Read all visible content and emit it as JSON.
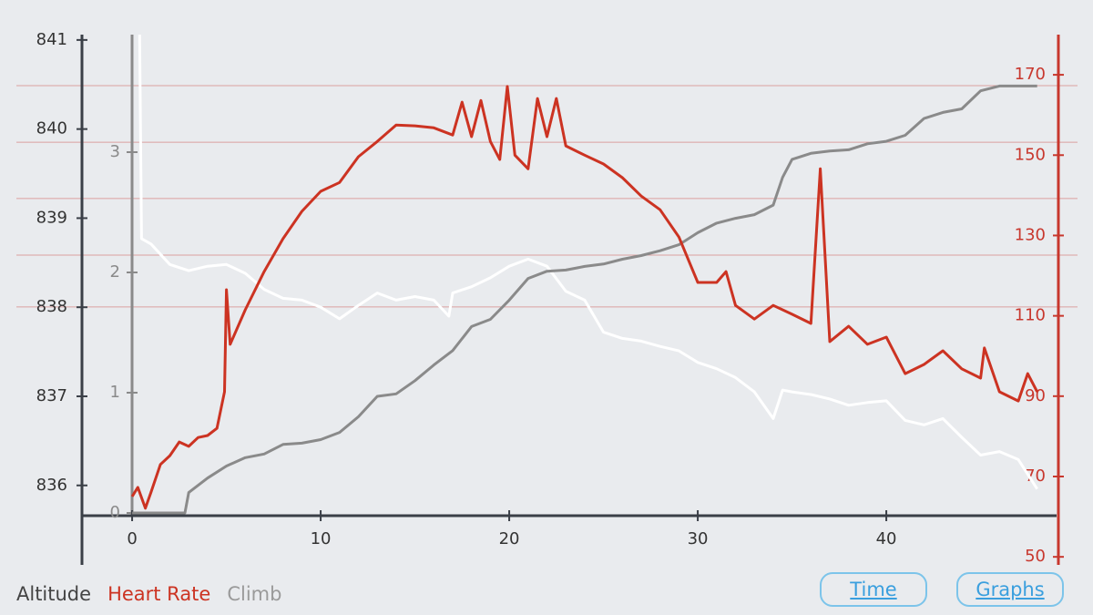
{
  "chart_data": {
    "type": "line",
    "xlim": [
      -2.66,
      49.03
    ],
    "xticks": [
      0,
      10,
      20,
      30,
      40
    ],
    "ylim": [
      835.66,
      841.06
    ],
    "yticks": [
      836,
      837,
      838,
      839,
      840,
      841
    ],
    "y2lim": [
      48,
      180
    ],
    "y2ticks": [
      50,
      70,
      90,
      110,
      130,
      150,
      170
    ],
    "y3lim": [
      0,
      4
    ],
    "y3ticks": [
      0,
      1,
      2,
      3
    ],
    "y2grid": [
      167.3,
      153.2,
      139.2,
      125.1,
      112.2
    ],
    "series": [
      {
        "name": "Altitude",
        "color": "#ffffff",
        "axis": "y",
        "x": [
          0.4,
          0.5,
          1,
          2,
          3,
          4,
          5,
          6,
          7,
          8,
          9,
          10,
          11,
          12,
          13,
          14,
          15,
          16,
          16.8,
          17,
          18,
          19,
          20,
          21,
          22,
          23,
          24,
          25,
          26,
          27,
          28,
          29,
          30,
          31,
          32,
          33,
          34,
          34.5,
          35,
          36,
          37,
          38,
          39,
          40,
          41,
          42,
          43,
          44,
          45,
          46,
          47,
          48
        ],
        "values": [
          841.06,
          838.77,
          838.71,
          838.48,
          838.41,
          838.46,
          838.48,
          838.38,
          838.2,
          838.1,
          838.08,
          838.0,
          837.87,
          838.02,
          838.16,
          838.08,
          838.12,
          838.08,
          837.9,
          838.16,
          838.23,
          838.33,
          838.46,
          838.54,
          838.46,
          838.18,
          838.08,
          837.72,
          837.65,
          837.62,
          837.56,
          837.51,
          837.38,
          837.31,
          837.21,
          837.05,
          836.75,
          837.07,
          837.05,
          837.02,
          836.97,
          836.9,
          836.93,
          836.95,
          836.73,
          836.68,
          836.75,
          836.54,
          836.34,
          836.38,
          836.29,
          835.96
        ]
      },
      {
        "name": "Heart Rate",
        "color": "#cc3322",
        "axis": "y2",
        "x": [
          0,
          0.3,
          0.7,
          1,
          1.5,
          2,
          2.5,
          3,
          3.5,
          4,
          4.5,
          4.9,
          5.0,
          5.2,
          6,
          7,
          8,
          9,
          10,
          11,
          12,
          13,
          14,
          15,
          16,
          17,
          17.5,
          18,
          18.5,
          19,
          19.5,
          19.9,
          20.3,
          21,
          21.5,
          22,
          22.5,
          23,
          24,
          25,
          26,
          27,
          28,
          29,
          30,
          31,
          31.5,
          32,
          33,
          34,
          35,
          36,
          36.5,
          37,
          38,
          39,
          40,
          41,
          42,
          43,
          44,
          45,
          45.2,
          46,
          47,
          47.5,
          48
        ],
        "values": [
          65.0,
          67.3,
          62.1,
          66.1,
          73.0,
          75.2,
          78.6,
          77.5,
          79.7,
          80.2,
          82.0,
          91.1,
          116.5,
          102.9,
          111.5,
          121.0,
          129.2,
          136.0,
          141.0,
          143.2,
          149.6,
          153.4,
          157.5,
          157.3,
          156.8,
          155.0,
          163.2,
          154.6,
          163.6,
          153.4,
          148.9,
          167.1,
          150.0,
          146.6,
          164.1,
          154.6,
          164.1,
          152.3,
          150.0,
          147.8,
          144.4,
          139.8,
          136.4,
          129.6,
          118.3,
          118.3,
          121.0,
          112.6,
          109.2,
          112.6,
          110.4,
          108.1,
          146.6,
          103.6,
          107.4,
          102.9,
          104.7,
          95.6,
          97.9,
          101.3,
          96.8,
          94.5,
          102.0,
          91.1,
          88.8,
          95.6,
          91.1
        ]
      },
      {
        "name": "Climb",
        "color": "#8a8a8a",
        "axis": "y3",
        "x": [
          0,
          2.8,
          3,
          4,
          5,
          6,
          7,
          8,
          9,
          10,
          11,
          12,
          13,
          14,
          15,
          16,
          17,
          18,
          19,
          20,
          21,
          22,
          23,
          24,
          25,
          26,
          27,
          28,
          29,
          30,
          31,
          32,
          33,
          34,
          34.5,
          35,
          36,
          37,
          38,
          39,
          40,
          41,
          42,
          43,
          44,
          45,
          46,
          47,
          48
        ],
        "values": [
          0,
          0,
          0.17,
          0.29,
          0.39,
          0.46,
          0.49,
          0.57,
          0.58,
          0.61,
          0.67,
          0.8,
          0.97,
          0.99,
          1.1,
          1.23,
          1.35,
          1.55,
          1.61,
          1.77,
          1.95,
          2.01,
          2.02,
          2.05,
          2.07,
          2.11,
          2.14,
          2.18,
          2.23,
          2.33,
          2.41,
          2.45,
          2.48,
          2.56,
          2.79,
          2.94,
          2.99,
          3.01,
          3.02,
          3.07,
          3.09,
          3.14,
          3.28,
          3.33,
          3.36,
          3.51,
          3.55,
          3.55,
          3.55
        ]
      }
    ]
  },
  "buttons": [
    "Time",
    "Graphs"
  ]
}
